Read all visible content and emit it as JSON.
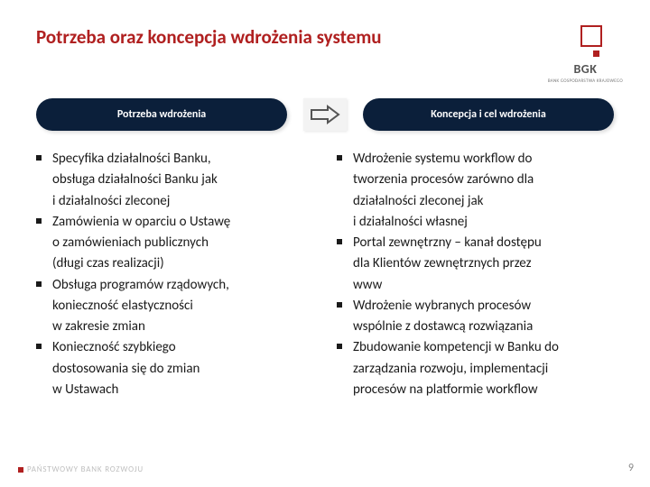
{
  "title": "Potrzeba oraz koncepcja wdrożenia systemu",
  "title_color": "#b02020",
  "logo": {
    "text": "BGK",
    "sub": "BANK GOSPODARSTWA\nKRAJOWEGO",
    "accent": "#b02020"
  },
  "pills": {
    "left": "Potrzeba wdrożenia",
    "right": "Koncepcja i cel wdrożenia",
    "bg": "#0b1f3a"
  },
  "left_items": [
    [
      "Specyfika działalności Banku,",
      "obsługa działalności Banku jak",
      " i działalności zleconej"
    ],
    [
      "Zamówienia w oparciu o Ustawę",
      "o zamówieniach publicznych",
      "(długi czas realizacji)"
    ],
    [
      "Obsługa programów rządowych,",
      "konieczność elastyczności",
      "w zakresie zmian"
    ],
    [
      "Konieczność szybkiego",
      "dostosowania się do zmian",
      "w Ustawach"
    ]
  ],
  "right_items": [
    [
      "Wdrożenie systemu workflow do",
      "tworzenia procesów zarówno dla",
      "działalności zleconej jak",
      " i działalności własnej"
    ],
    [
      "Portal zewnętrzny – kanał dostępu",
      "dla Klientów zewnętrznych przez",
      "www"
    ],
    [
      "Wdrożenie wybranych procesów",
      "wspólnie z dostawcą rozwiązania"
    ],
    [
      "Zbudowanie kompetencji w Banku do",
      "zarządzania rozwoju, implementacji",
      "procesów na platformie workflow"
    ]
  ],
  "footer": "PAŃSTWOWY BANK ROZWOJU",
  "page": "9"
}
